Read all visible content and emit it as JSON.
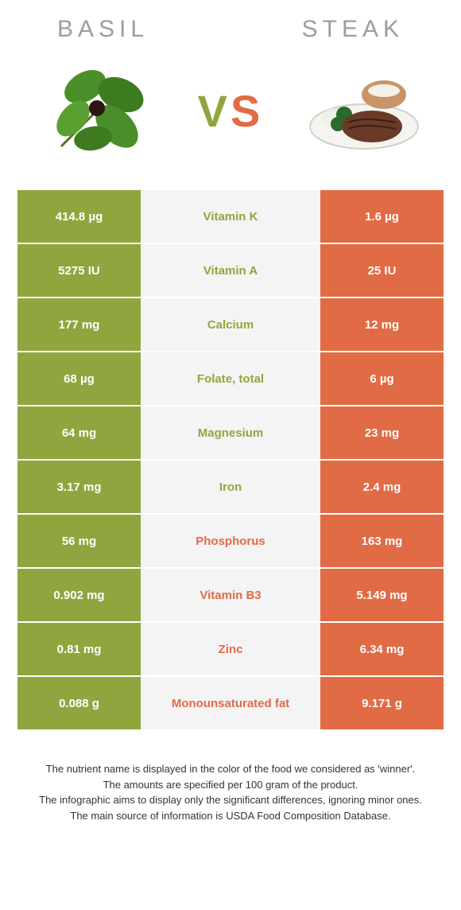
{
  "header": {
    "left": "Basil",
    "right": "Steak"
  },
  "vs": {
    "v": "V",
    "s": "S"
  },
  "colors": {
    "basil": "#8fa63f",
    "steak": "#e16b45",
    "mid_bg": "#f4f4f4",
    "header_text": "#9d9d9d"
  },
  "rows": [
    {
      "left": "414.8 µg",
      "label": "Vitamin K",
      "right": "1.6 µg",
      "winner": "basil"
    },
    {
      "left": "5275 IU",
      "label": "Vitamin A",
      "right": "25 IU",
      "winner": "basil"
    },
    {
      "left": "177 mg",
      "label": "Calcium",
      "right": "12 mg",
      "winner": "basil"
    },
    {
      "left": "68 µg",
      "label": "Folate, total",
      "right": "6 µg",
      "winner": "basil"
    },
    {
      "left": "64 mg",
      "label": "Magnesium",
      "right": "23 mg",
      "winner": "basil"
    },
    {
      "left": "3.17 mg",
      "label": "Iron",
      "right": "2.4 mg",
      "winner": "basil"
    },
    {
      "left": "56 mg",
      "label": "Phosphorus",
      "right": "163 mg",
      "winner": "steak"
    },
    {
      "left": "0.902 mg",
      "label": "Vitamin B3",
      "right": "5.149 mg",
      "winner": "steak"
    },
    {
      "left": "0.81 mg",
      "label": "Zinc",
      "right": "6.34 mg",
      "winner": "steak"
    },
    {
      "left": "0.088 g",
      "label": "Monounsaturated fat",
      "right": "9.171 g",
      "winner": "steak"
    }
  ],
  "footer": {
    "l1": "The nutrient name is displayed in the color of the food we considered as 'winner'.",
    "l2": "The amounts are specified per 100 gram of the product.",
    "l3": "The infographic aims to display only the significant differences, ignoring minor ones.",
    "l4": "The main source of information is USDA Food Composition Database."
  }
}
